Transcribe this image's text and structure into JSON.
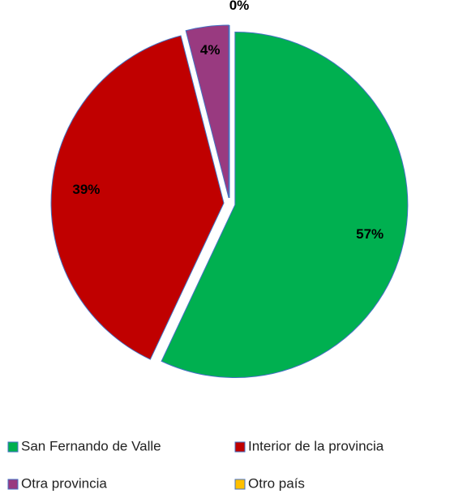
{
  "chart_data": {
    "type": "pie",
    "categories": [
      "San Fernando de Valle",
      "Interior de la provincia",
      "Otra provincia",
      "Otro país"
    ],
    "values": [
      57,
      39,
      4,
      0
    ],
    "value_labels": [
      "57%",
      "39%",
      "4%",
      "0%"
    ],
    "colors": [
      "#00b050",
      "#c00000",
      "#993a80",
      "#ffc000"
    ],
    "legend": "bottom"
  }
}
